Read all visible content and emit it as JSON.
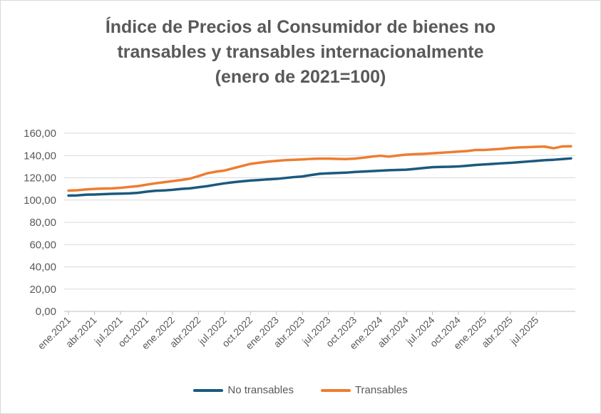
{
  "chart_data": {
    "type": "line",
    "title_lines": [
      "Índice de Precios al Consumidor de bienes no",
      "transables y transables internacionalmente",
      "(enero de 2021=100)"
    ],
    "xlabel": "",
    "ylabel": "",
    "ylim": [
      0,
      160
    ],
    "y_ticks": [
      "0,00",
      "20,00",
      "40,00",
      "60,00",
      "80,00",
      "100,00",
      "120,00",
      "140,00",
      "160,00"
    ],
    "x_tick_labels": [
      "ene.2021",
      "abr.2021",
      "jul.2021",
      "oct.2021",
      "ene.2022",
      "abr.2022",
      "jul.2022",
      "oct.2022",
      "ene.2023",
      "abr.2023",
      "jul.2023",
      "oct.2023",
      "ene.2024",
      "abr.2024",
      "jul.2024",
      "oct.2024",
      "ene.2025",
      "abr.2025",
      "jul.2025"
    ],
    "x_tick_every_months": 3,
    "grid": "horizontal",
    "legend_position": "bottom",
    "series": [
      {
        "name": "No transables",
        "color": "#1a5a7e",
        "values": [
          104.0,
          104.2,
          104.8,
          105.0,
          105.3,
          105.6,
          105.8,
          106.0,
          106.5,
          107.5,
          108.3,
          108.6,
          109.2,
          110.0,
          110.5,
          111.5,
          112.5,
          113.8,
          115.0,
          116.0,
          116.8,
          117.5,
          118.0,
          118.6,
          119.0,
          119.8,
          120.6,
          121.2,
          122.5,
          123.6,
          124.0,
          124.3,
          124.6,
          125.2,
          125.6,
          126.0,
          126.4,
          126.8,
          127.0,
          127.3,
          128.0,
          128.8,
          129.5,
          129.8,
          129.9,
          130.2,
          130.8,
          131.5,
          132.0,
          132.5,
          133.0,
          133.4,
          134.0,
          134.6,
          135.2,
          135.8,
          136.2,
          136.8,
          137.4
        ]
      },
      {
        "name": "Transables",
        "color": "#ed7d31",
        "values": [
          108.5,
          108.8,
          109.5,
          110.0,
          110.3,
          110.5,
          111.0,
          111.8,
          112.5,
          113.8,
          115.0,
          116.0,
          117.0,
          118.0,
          119.2,
          121.5,
          124.0,
          125.5,
          126.5,
          128.5,
          130.5,
          132.5,
          133.5,
          134.5,
          135.2,
          135.8,
          136.2,
          136.5,
          137.0,
          137.2,
          137.2,
          137.0,
          136.8,
          137.2,
          138.0,
          139.0,
          139.8,
          139.0,
          140.0,
          140.8,
          141.2,
          141.5,
          142.0,
          142.5,
          143.0,
          143.5,
          144.0,
          145.0,
          145.0,
          145.5,
          146.0,
          146.8,
          147.3,
          147.5,
          147.8,
          148.0,
          146.5,
          148.2,
          148.3
        ]
      }
    ]
  }
}
